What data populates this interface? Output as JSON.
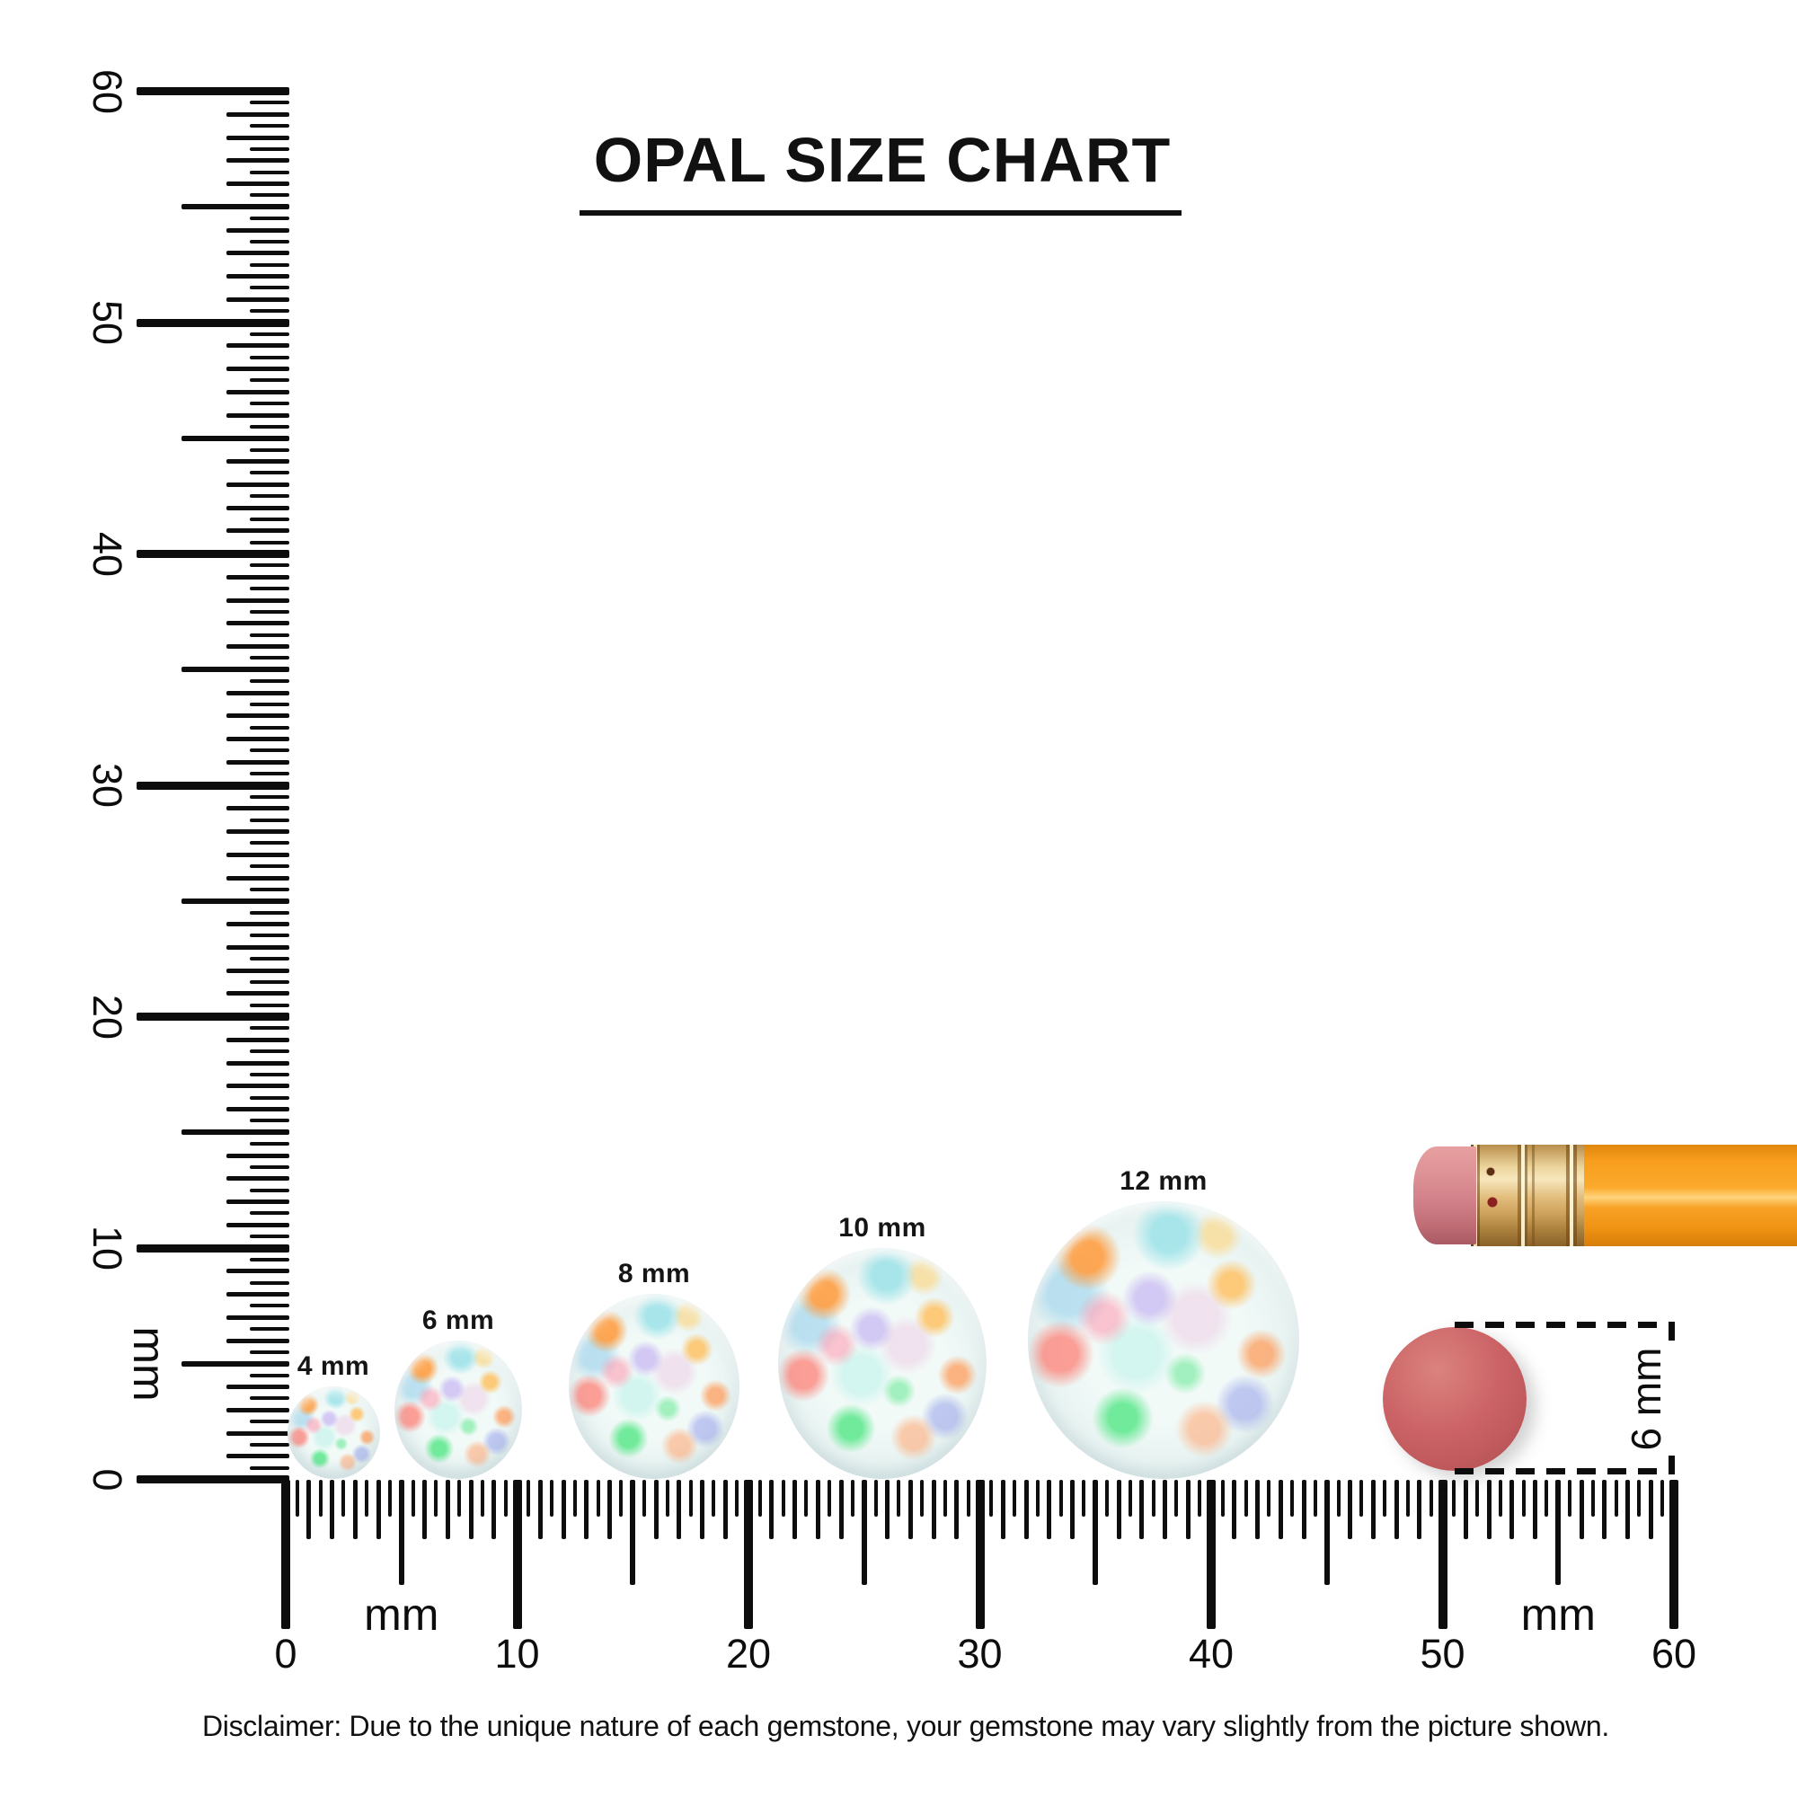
{
  "title": {
    "text": "OPAL SIZE CHART"
  },
  "vertical_ruler": {
    "unit": "mm",
    "labels": [
      "60",
      "50",
      "40",
      "30",
      "20",
      "10",
      "0"
    ]
  },
  "horizontal_ruler": {
    "unit_left": "mm",
    "unit_right": "mm",
    "labels": [
      "0",
      "10",
      "20",
      "30",
      "40",
      "50",
      "60"
    ]
  },
  "gems": [
    {
      "label": "4 mm",
      "mm": 4
    },
    {
      "label": "6 mm",
      "mm": 6
    },
    {
      "label": "8 mm",
      "mm": 8
    },
    {
      "label": "10 mm",
      "mm": 10
    },
    {
      "label": "12 mm",
      "mm": 12
    }
  ],
  "reference": {
    "size_label": "6 mm",
    "mm": 6
  },
  "disclaimer": "Disclaimer: Due to the unique nature of each gemstone, your gemstone may vary slightly from the picture shown.",
  "colors": {
    "ink_black": "#0d0d0d",
    "pencil_orange": "#f9a01f",
    "eraser_pink": "#d5888c",
    "ferrule_gold": "#e2bd7c",
    "reference_gem_red": "#c75e5f"
  }
}
